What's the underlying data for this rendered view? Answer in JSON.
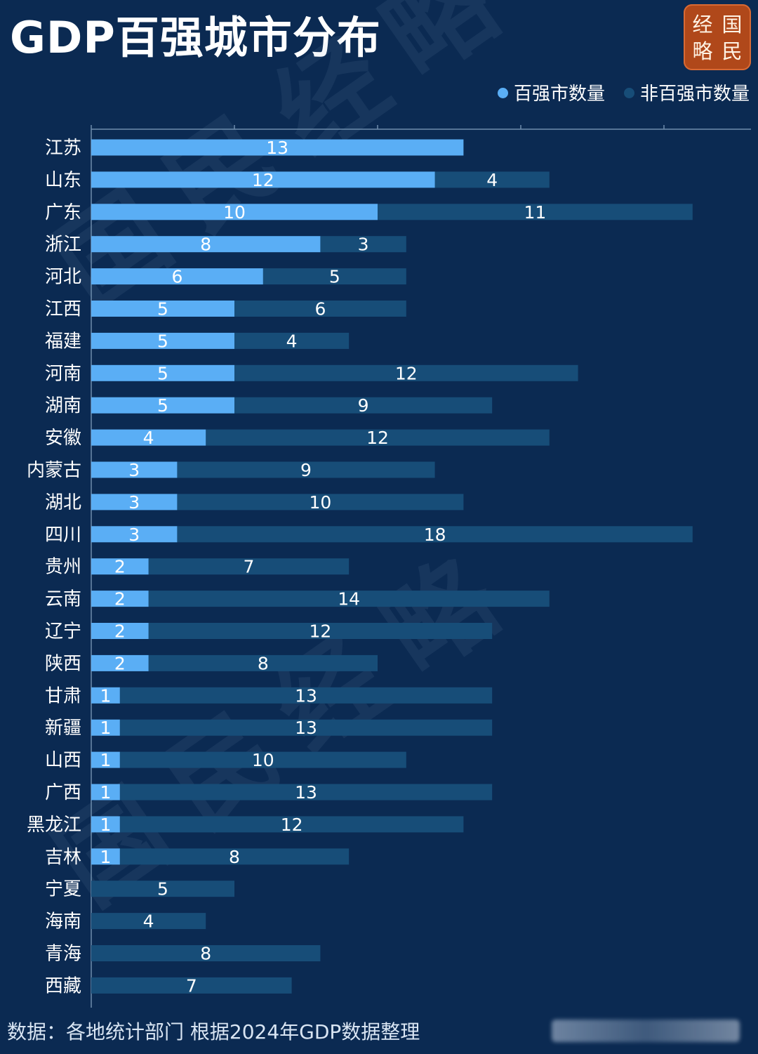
{
  "title": "GDP百强城市分布",
  "logo": {
    "chars": [
      "经",
      "国",
      "略",
      "民"
    ]
  },
  "colors": {
    "background": "#0b2a52",
    "top100": "#5aaef5",
    "non_top100": "#174d78",
    "axis": "#6f8dad"
  },
  "watermark": "国民经略",
  "chart_data": {
    "type": "bar",
    "orientation": "horizontal",
    "stacked": true,
    "categories": [
      "江苏",
      "山东",
      "广东",
      "浙江",
      "河北",
      "江西",
      "福建",
      "河南",
      "湖南",
      "安徽",
      "内蒙古",
      "湖北",
      "四川",
      "贵州",
      "云南",
      "辽宁",
      "陕西",
      "甘肃",
      "新疆",
      "山西",
      "广西",
      "黑龙江",
      "吉林",
      "宁夏",
      "海南",
      "青海",
      "西藏"
    ],
    "series": [
      {
        "name": "百强市数量",
        "values": [
          13,
          12,
          10,
          8,
          6,
          5,
          5,
          5,
          5,
          4,
          3,
          3,
          3,
          2,
          2,
          2,
          2,
          1,
          1,
          1,
          1,
          1,
          1,
          0,
          0,
          0,
          0
        ]
      },
      {
        "name": "非百强市数量",
        "values": [
          0,
          4,
          11,
          3,
          5,
          6,
          4,
          12,
          9,
          12,
          9,
          10,
          18,
          7,
          14,
          12,
          8,
          13,
          13,
          10,
          13,
          12,
          8,
          5,
          4,
          8,
          7
        ]
      }
    ],
    "xlim": [
      0,
      23
    ],
    "data_labels": true,
    "legend": "top-right",
    "grid": false
  },
  "footer": {
    "source": "数据：各地统计部门 根据2024年GDP数据整理"
  }
}
